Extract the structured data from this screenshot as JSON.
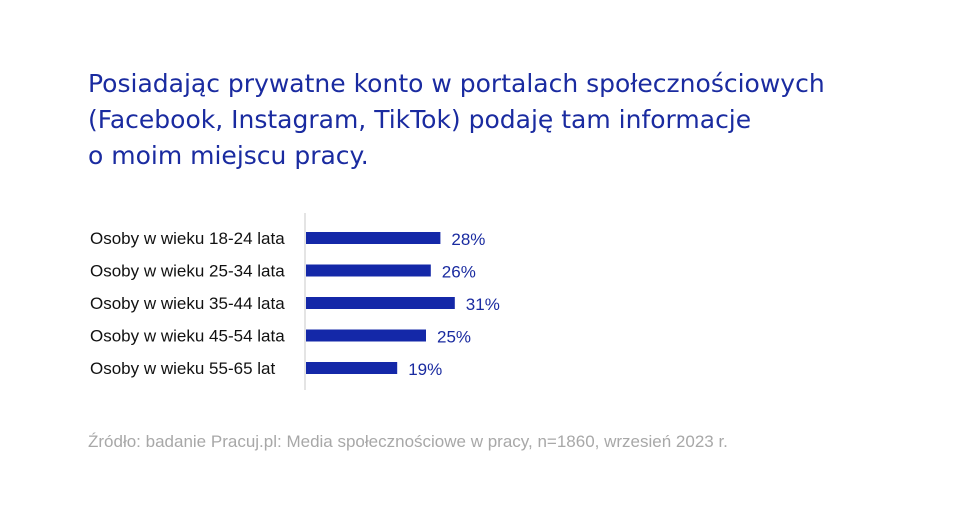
{
  "title_lines": [
    "Posiadając prywatne konto w portalach społecznościowych",
    "(Facebook, Instagram, TikTok) podaję tam informacje",
    "o moim miejscu pracy."
  ],
  "source": "Źródło: badanie Pracuj.pl: Media społecznościowe w pracy, n=1860, wrzesień 2023 r.",
  "colors": {
    "title": "#1a2ba0",
    "bar": "#1428a8",
    "value_label": "#1a2ba0",
    "category_label": "#111111",
    "axis": "#c8c8c8",
    "source": "#a8a8a8"
  },
  "chart_data": {
    "type": "bar",
    "orientation": "horizontal",
    "title": "Posiadając prywatne konto w portalach społecznościowych (Facebook, Instagram, TikTok) podaję tam informacje o moim miejscu pracy.",
    "categories": [
      "Osoby w wieku 18-24 lata",
      "Osoby w wieku 25-34 lata",
      "Osoby w wieku 35-44 lata",
      "Osoby w wieku 45-54 lata",
      "Osoby w wieku 55-65 lat"
    ],
    "values": [
      28,
      26,
      31,
      25,
      19
    ],
    "value_labels": [
      "28%",
      "26%",
      "31%",
      "25%",
      "19%"
    ],
    "unit": "%",
    "xlim": [
      0,
      100
    ],
    "xlabel": "",
    "ylabel": "",
    "grid": false,
    "legend": "none"
  }
}
